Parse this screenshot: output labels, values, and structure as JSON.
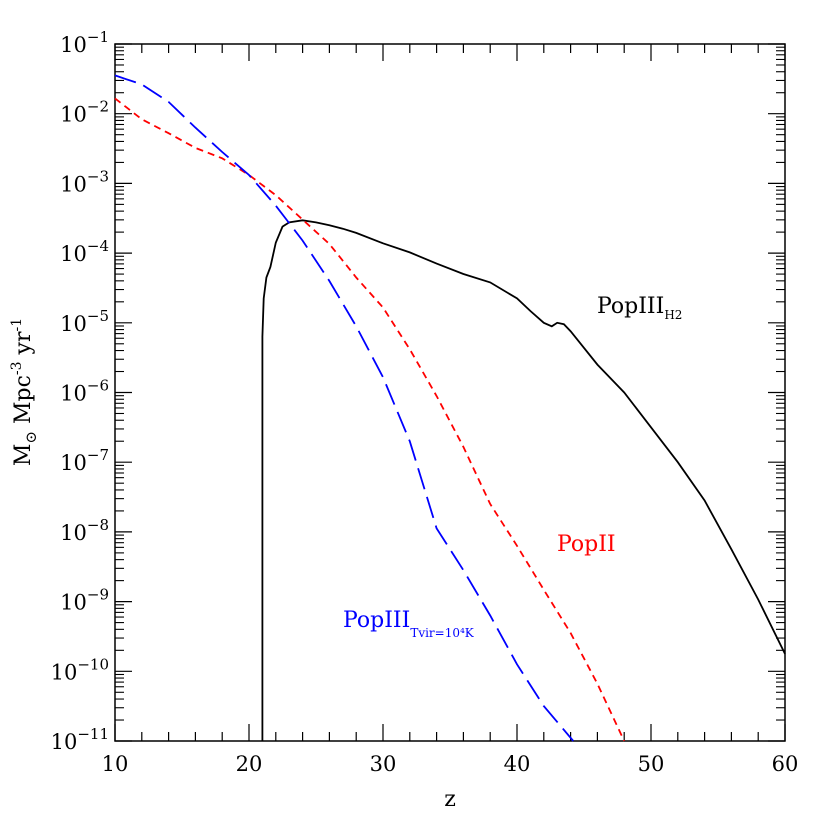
{
  "chart_data": {
    "type": "line",
    "xlabel": "z",
    "ylabel_parts": {
      "m": "M",
      "sun": "⊙",
      "mpc": " Mpc",
      "mpc_exp": "-3",
      "yr": " yr",
      "yr_exp": "-1"
    },
    "xlim": [
      10,
      60
    ],
    "ylim_log10": [
      -11,
      -1
    ],
    "y_scale": "log",
    "x_ticks": [
      "10",
      "20",
      "30",
      "40",
      "50",
      "60"
    ],
    "y_tick_exponents": [
      "-1",
      "-2",
      "-3",
      "-4",
      "-5",
      "-6",
      "-7",
      "-8",
      "-9",
      "-10",
      "-11"
    ],
    "y_tick_base": "10",
    "grid": false,
    "series": [
      {
        "key": "popiii_h2",
        "label_main": "PopIII",
        "label_sub": "H2",
        "color": "#000000",
        "style": "solid",
        "points": [
          [
            21.0,
            -11.0
          ],
          [
            21.0,
            -5.2
          ],
          [
            21.1,
            -4.65
          ],
          [
            21.3,
            -4.35
          ],
          [
            21.6,
            -4.2
          ],
          [
            22.0,
            -3.85
          ],
          [
            22.5,
            -3.62
          ],
          [
            23.0,
            -3.56
          ],
          [
            24.0,
            -3.53
          ],
          [
            25.0,
            -3.56
          ],
          [
            26.0,
            -3.6
          ],
          [
            27.0,
            -3.65
          ],
          [
            28.0,
            -3.71
          ],
          [
            30.0,
            -3.86
          ],
          [
            32.0,
            -3.99
          ],
          [
            34.0,
            -4.15
          ],
          [
            36.0,
            -4.3
          ],
          [
            38.0,
            -4.42
          ],
          [
            40.0,
            -4.65
          ],
          [
            41.0,
            -4.83
          ],
          [
            42.0,
            -5.0
          ],
          [
            42.6,
            -5.05
          ],
          [
            43.0,
            -5.0
          ],
          [
            43.5,
            -5.02
          ],
          [
            44.0,
            -5.12
          ],
          [
            46.0,
            -5.6
          ],
          [
            48.0,
            -6.0
          ],
          [
            50.0,
            -6.5
          ],
          [
            52.0,
            -7.0
          ],
          [
            54.0,
            -7.55
          ],
          [
            56.0,
            -8.25
          ],
          [
            58.0,
            -8.97
          ],
          [
            60.0,
            -9.75
          ]
        ]
      },
      {
        "key": "popii",
        "label_main": "PopII",
        "label_sub": "",
        "color": "#ff0000",
        "style": "short-dash",
        "points": [
          [
            10.0,
            -1.78
          ],
          [
            12.0,
            -2.08
          ],
          [
            14.0,
            -2.28
          ],
          [
            16.0,
            -2.49
          ],
          [
            18.0,
            -2.64
          ],
          [
            20.0,
            -2.88
          ],
          [
            22.0,
            -3.17
          ],
          [
            24.0,
            -3.52
          ],
          [
            26.0,
            -3.87
          ],
          [
            28.0,
            -4.35
          ],
          [
            30.0,
            -4.78
          ],
          [
            32.0,
            -5.38
          ],
          [
            34.0,
            -6.05
          ],
          [
            36.0,
            -6.78
          ],
          [
            38.0,
            -7.6
          ],
          [
            40.0,
            -8.2
          ],
          [
            42.0,
            -8.83
          ],
          [
            44.0,
            -9.45
          ],
          [
            46.0,
            -10.18
          ],
          [
            48.0,
            -11.0
          ]
        ]
      },
      {
        "key": "popiii_tvir",
        "label_main": "PopIII",
        "label_sub": "Tvir=10⁴K",
        "color": "#0000ff",
        "style": "long-dash",
        "points": [
          [
            10.0,
            -1.45
          ],
          [
            12.0,
            -1.58
          ],
          [
            14.0,
            -1.83
          ],
          [
            16.0,
            -2.2
          ],
          [
            18.0,
            -2.55
          ],
          [
            20.0,
            -2.88
          ],
          [
            22.0,
            -3.32
          ],
          [
            24.0,
            -3.82
          ],
          [
            26.0,
            -4.4
          ],
          [
            28.0,
            -5.05
          ],
          [
            30.0,
            -5.78
          ],
          [
            32.0,
            -6.7
          ],
          [
            34.0,
            -7.95
          ],
          [
            36.0,
            -8.55
          ],
          [
            38.0,
            -9.2
          ],
          [
            40.0,
            -9.9
          ],
          [
            42.0,
            -10.5
          ],
          [
            44.2,
            -11.0
          ]
        ]
      }
    ]
  }
}
